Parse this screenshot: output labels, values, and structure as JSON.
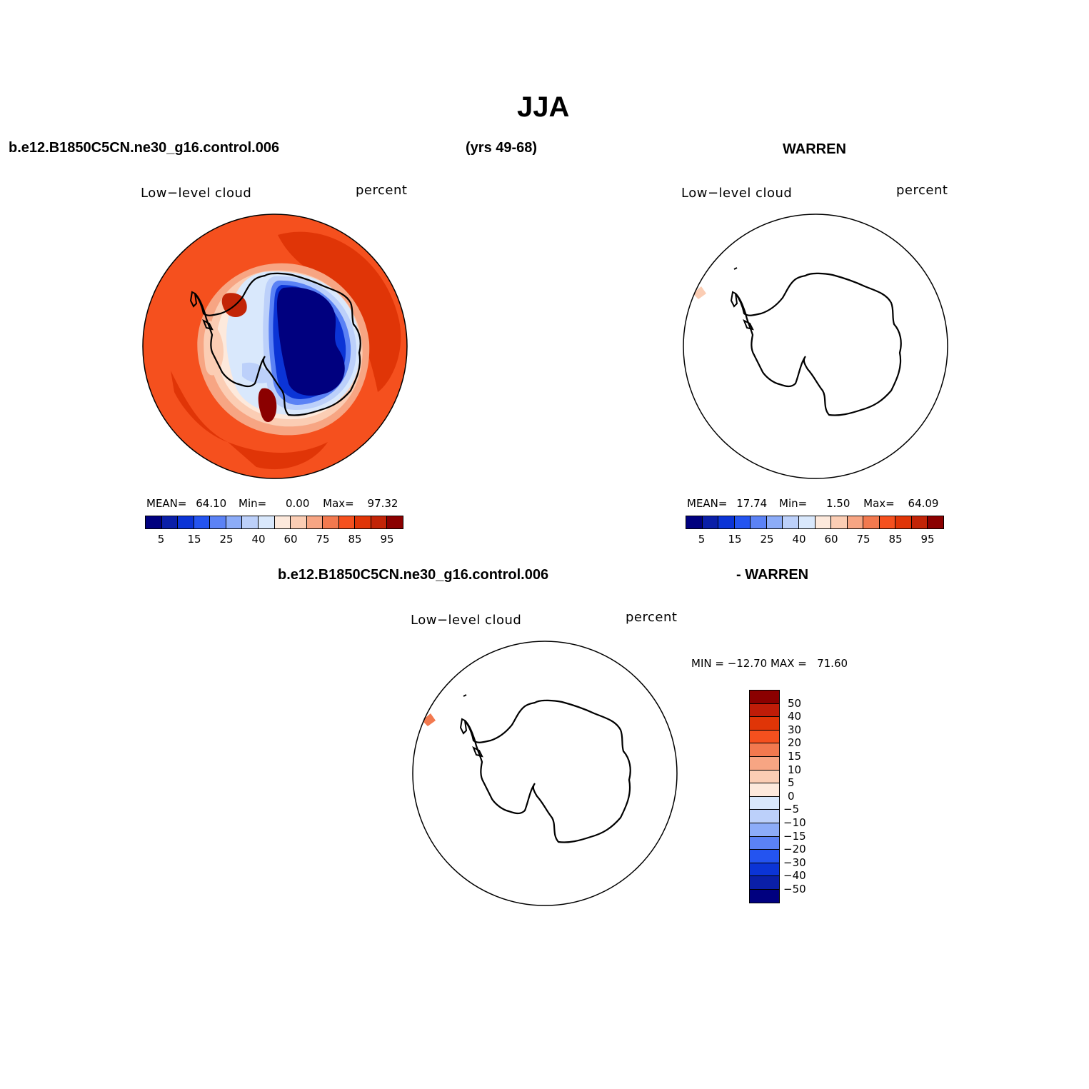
{
  "figure": {
    "title": "JJA",
    "case_name": "b.e12.B1850C5CN.ne30_g16.control.006",
    "years": "(yrs 49-68)",
    "obs_name": "WARREN",
    "diff_case": "b.e12.B1850C5CN.ne30_g16.control.006",
    "diff_obs": "- WARREN"
  },
  "panels": {
    "model": {
      "variable": "Low−level cloud",
      "units": "percent",
      "mean_label": "MEAN=",
      "mean": "64.10",
      "min_label": "Min=",
      "min": "0.00",
      "max_label": "Max=",
      "max": "97.32"
    },
    "obs": {
      "variable": "Low−level cloud",
      "units": "percent",
      "mean_label": "MEAN=",
      "mean": "17.74",
      "min_label": "Min=",
      "min": "1.50",
      "max_label": "Max=",
      "max": "64.09"
    },
    "diff": {
      "variable": "Low−level cloud",
      "units": "percent",
      "minmax": "MIN = −12.70 MAX =   71.60"
    }
  },
  "colorbars": {
    "abs": {
      "colors": [
        "#00007f",
        "#0a1fa8",
        "#0b34d6",
        "#2454f0",
        "#5b82f5",
        "#8cacf8",
        "#bcd0fa",
        "#d9e8fc",
        "#fde9dc",
        "#fbcdb4",
        "#f7a583",
        "#f2794f",
        "#f5501e",
        "#e03507",
        "#c22407",
        "#8b0000"
      ],
      "tick_labels": [
        "5",
        "15",
        "25",
        "40",
        "60",
        "75",
        "85",
        "95"
      ]
    },
    "diff": {
      "colors_top_to_bottom": [
        "#8b0000",
        "#bf1c08",
        "#e03507",
        "#f5501e",
        "#f2794f",
        "#f7a583",
        "#fbcdb4",
        "#fde9dc",
        "#d9e8fc",
        "#bcd0fa",
        "#8cacf8",
        "#5b82f5",
        "#2454f0",
        "#0b34d6",
        "#0a1fa8",
        "#00007f"
      ],
      "tick_labels_top_to_bottom": [
        "50",
        "40",
        "30",
        "20",
        "15",
        "10",
        "5",
        "0",
        "−5",
        "−10",
        "−15",
        "−20",
        "−30",
        "−40",
        "−50"
      ]
    }
  }
}
